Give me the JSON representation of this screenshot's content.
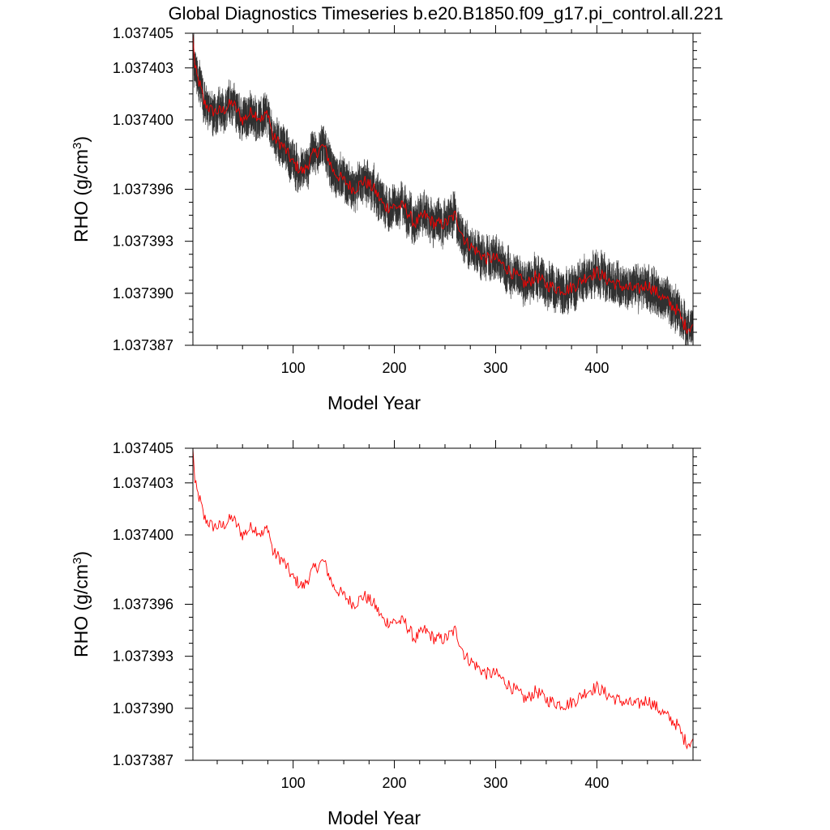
{
  "title": "Global Diagnostics Timeseries b.e20.B1850.f09_g17.pi_control.all.221",
  "chart_data": [
    {
      "type": "line",
      "xlabel": "Model Year",
      "ylabel_main": "RHO (g/cm",
      "ylabel_sup": "3",
      "ylabel_close": ")",
      "xlim": [
        1,
        495
      ],
      "ylim": [
        1.037387,
        1.037405
      ],
      "xticks": [
        100,
        200,
        300,
        400
      ],
      "xtick_labels": [
        "100",
        "200",
        "300",
        "400"
      ],
      "yticks": [
        1.037387,
        1.03739,
        1.037393,
        1.037396,
        1.0374,
        1.037403,
        1.037405
      ],
      "ytick_labels": [
        "1.037387",
        "1.037390",
        "1.037393",
        "1.037396",
        "1.037400",
        "1.037403",
        "1.037405"
      ],
      "series": [
        {
          "role": "monthly",
          "color": "#303030",
          "noise_amplitude": 1.2e-06
        },
        {
          "role": "annual-mean",
          "color": "#ff0000"
        }
      ],
      "annual_mean_keypoints": {
        "x": [
          1,
          3,
          5,
          8,
          12,
          20,
          30,
          40,
          50,
          60,
          70,
          75,
          80,
          90,
          100,
          110,
          120,
          130,
          140,
          150,
          160,
          170,
          180,
          190,
          200,
          210,
          220,
          230,
          240,
          250,
          260,
          270,
          280,
          290,
          300,
          310,
          320,
          330,
          340,
          350,
          360,
          370,
          380,
          390,
          400,
          410,
          420,
          430,
          440,
          450,
          460,
          470,
          480,
          485,
          490,
          495
        ],
        "y": [
          1.037405,
          1.037403,
          1.0374025,
          1.037402,
          1.037401,
          1.0374005,
          1.0374005,
          1.037401,
          1.0374,
          1.0374005,
          1.0374,
          1.0374005,
          1.037399,
          1.0373985,
          1.0373975,
          1.037397,
          1.037398,
          1.0373985,
          1.037397,
          1.0373965,
          1.037396,
          1.0373965,
          1.037396,
          1.037395,
          1.037395,
          1.037395,
          1.037394,
          1.0373945,
          1.037394,
          1.037394,
          1.0373945,
          1.037393,
          1.0373925,
          1.037392,
          1.037392,
          1.0373915,
          1.037391,
          1.0373905,
          1.037391,
          1.0373905,
          1.0373903,
          1.0373902,
          1.0373905,
          1.037391,
          1.0373912,
          1.0373908,
          1.0373905,
          1.0373903,
          1.0373902,
          1.0373905,
          1.03739,
          1.0373895,
          1.037389,
          1.0373883,
          1.037388,
          1.0373882
        ]
      }
    },
    {
      "type": "line",
      "xlabel": "Model Year",
      "ylabel_main": "RHO (g/cm",
      "ylabel_sup": "3",
      "ylabel_close": ")",
      "xlim": [
        1,
        495
      ],
      "ylim": [
        1.037387,
        1.037405
      ],
      "xticks": [
        100,
        200,
        300,
        400
      ],
      "xtick_labels": [
        "100",
        "200",
        "300",
        "400"
      ],
      "yticks": [
        1.037387,
        1.03739,
        1.037393,
        1.037396,
        1.0374,
        1.037403,
        1.037405
      ],
      "ytick_labels": [
        "1.037387",
        "1.037390",
        "1.037393",
        "1.037396",
        "1.037400",
        "1.037403",
        "1.037405"
      ],
      "series": [
        {
          "role": "annual-mean",
          "color": "#ff0000"
        }
      ]
    }
  ]
}
